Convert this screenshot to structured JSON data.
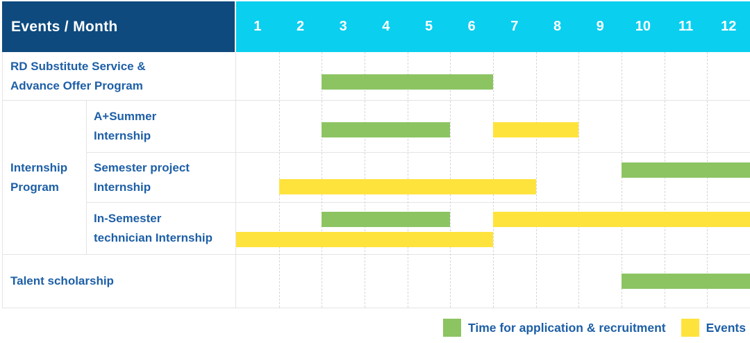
{
  "colors": {
    "header_bg": "#0E4A7E",
    "month_strip_bg": "#0ACFEF",
    "header_text": "#FFFFFF",
    "label_text": "#1D5FA6",
    "application_bar": "#8CC462",
    "event_bar": "#FFE33D"
  },
  "header": {
    "title": "Events / Month",
    "months": [
      "1",
      "2",
      "3",
      "4",
      "5",
      "6",
      "7",
      "8",
      "9",
      "10",
      "11",
      "12"
    ]
  },
  "rows": [
    {
      "label": "RD Substitute Service &\nAdvance Offer Program"
    },
    {
      "group": "Internship\nProgram",
      "label": "A+Summer\nInternship"
    },
    {
      "label": "Semester project\nInternship"
    },
    {
      "label": "In-Semester\ntechnician Internship"
    },
    {
      "label": "Talent scholarship"
    }
  ],
  "legend": [
    {
      "type": "application",
      "label": "Time for application & recruitment",
      "color": "#8CC462"
    },
    {
      "type": "event",
      "label": "Events",
      "color": "#FFE33D"
    }
  ],
  "chart_data": {
    "type": "gantt",
    "title": "Events / Month",
    "x_label": "Month",
    "x_ticks": [
      1,
      2,
      3,
      4,
      5,
      6,
      7,
      8,
      9,
      10,
      11,
      12
    ],
    "legend_position": "bottom-right",
    "bar_types": {
      "application": {
        "label": "Time for application & recruitment",
        "color": "#8CC462"
      },
      "event": {
        "label": "Events",
        "color": "#FFE33D"
      }
    },
    "rows": [
      {
        "label": "RD Substitute Service & Advance Offer Program",
        "group": null,
        "bars": [
          {
            "type": "application",
            "start_month": 3,
            "end_month": 6,
            "lane": 1
          }
        ]
      },
      {
        "label": "A+Summer Internship",
        "group": "Internship Program",
        "bars": [
          {
            "type": "application",
            "start_month": 3,
            "end_month": 5,
            "lane": 1
          },
          {
            "type": "event",
            "start_month": 7,
            "end_month": 8,
            "lane": 1
          }
        ]
      },
      {
        "label": "Semester project Internship",
        "group": "Internship Program",
        "bars": [
          {
            "type": "application",
            "start_month": 10,
            "end_month": 12,
            "lane": 1
          },
          {
            "type": "event",
            "start_month": 2,
            "end_month": 7,
            "lane": 2
          }
        ]
      },
      {
        "label": "In-Semester technician Internship",
        "group": "Internship Program",
        "bars": [
          {
            "type": "application",
            "start_month": 3,
            "end_month": 5,
            "lane": 1
          },
          {
            "type": "event",
            "start_month": 7,
            "end_month": 12,
            "lane": 1
          },
          {
            "type": "event",
            "start_month": 1,
            "end_month": 6,
            "lane": 2
          }
        ]
      },
      {
        "label": "Talent scholarship",
        "group": null,
        "bars": [
          {
            "type": "application",
            "start_month": 10,
            "end_month": 12,
            "lane": 1
          }
        ]
      }
    ]
  }
}
